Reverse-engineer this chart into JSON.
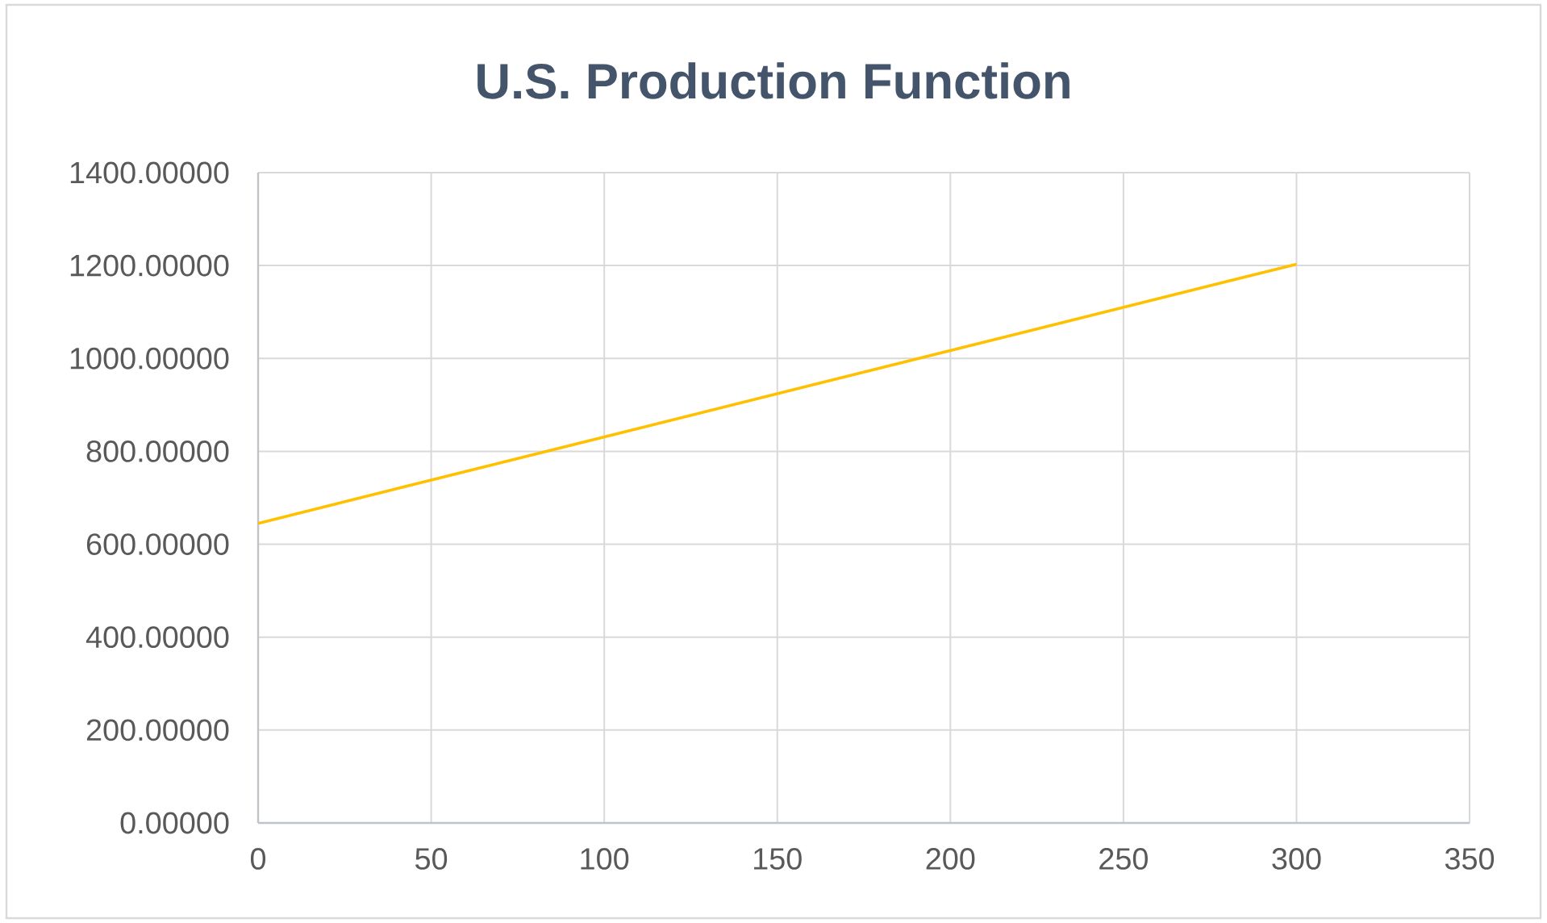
{
  "chart_data": {
    "type": "line",
    "title": "U.S. Production Function",
    "series": [
      {
        "color": "#ffc000",
        "x": [
          0,
          300
        ],
        "values": [
          645,
          1203
        ]
      }
    ],
    "xlim": [
      0,
      350
    ],
    "xticks": [
      0,
      50,
      100,
      150,
      200,
      250,
      300,
      350
    ],
    "ylim": [
      0,
      1400
    ],
    "yticks": [
      {
        "value": 0,
        "label": "0.00000"
      },
      {
        "value": 200,
        "label": "200.00000"
      },
      {
        "value": 400,
        "label": "400.00000"
      },
      {
        "value": 600,
        "label": "600.00000"
      },
      {
        "value": 800,
        "label": "800.00000"
      },
      {
        "value": 1000,
        "label": "1000.00000"
      },
      {
        "value": 1200,
        "label": "1200.00000"
      },
      {
        "value": 1400,
        "label": "1400.00000"
      }
    ],
    "grid": true
  }
}
